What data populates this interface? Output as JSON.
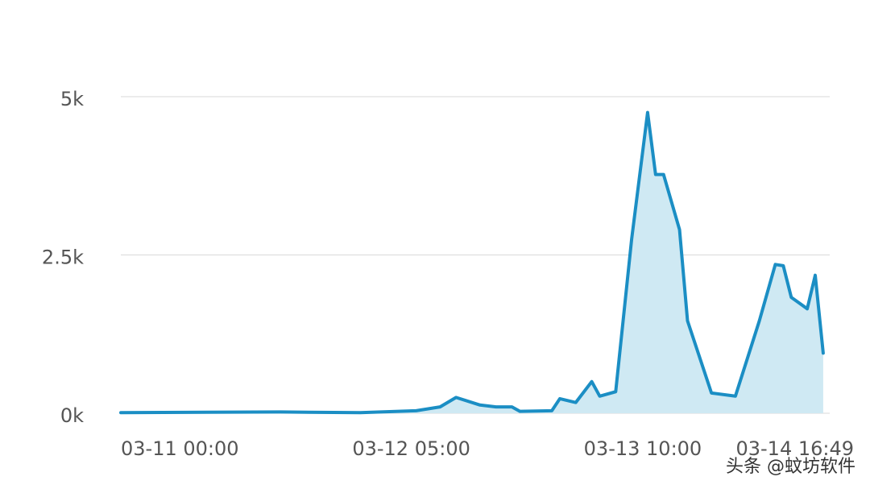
{
  "chart_data": {
    "type": "area",
    "x": [
      "03-11 00:00",
      "03-11 20:00",
      "03-12 06:00",
      "03-12 13:00",
      "03-12 16:00",
      "03-12 18:00",
      "03-12 21:00",
      "03-12 23:00",
      "03-13 01:00",
      "03-13 02:00",
      "03-13 06:00",
      "03-13 07:00",
      "03-13 09:00",
      "03-13 11:00",
      "03-13 12:00",
      "03-13 14:00",
      "03-13 16:00",
      "03-13 18:00",
      "03-13 19:00",
      "03-13 20:00",
      "03-13 22:00",
      "03-13 23:00",
      "03-14 02:00",
      "03-14 05:00",
      "03-14 08:00",
      "03-14 10:00",
      "03-14 11:00",
      "03-14 12:00",
      "03-14 14:00",
      "03-14 15:00",
      "03-14 16:00"
    ],
    "series": [
      {
        "color": "#1b8ec4",
        "values": [
          10,
          20,
          10,
          40,
          100,
          250,
          130,
          100,
          100,
          30,
          40,
          230,
          170,
          500,
          270,
          340,
          2750,
          4750,
          3770,
          3770,
          2900,
          1460,
          320,
          270,
          1460,
          2350,
          2330,
          1830,
          1650,
          2180,
          950
        ]
      }
    ],
    "xlim": [
      "03-11 00:00",
      "03-14 16:49"
    ],
    "xticks": [
      "03-11 00:00",
      "03-12 05:00",
      "03-13 10:00",
      "03-14 16:49"
    ],
    "ylim": [
      0,
      5000
    ],
    "yticks": [
      {
        "value": 0,
        "label": "0k"
      },
      {
        "value": 2500,
        "label": "2.5k"
      },
      {
        "value": 5000,
        "label": "5k"
      }
    ],
    "grid": true,
    "fill_color": "#cfe9f3",
    "watermark": "头条 @蚊坊软件"
  }
}
